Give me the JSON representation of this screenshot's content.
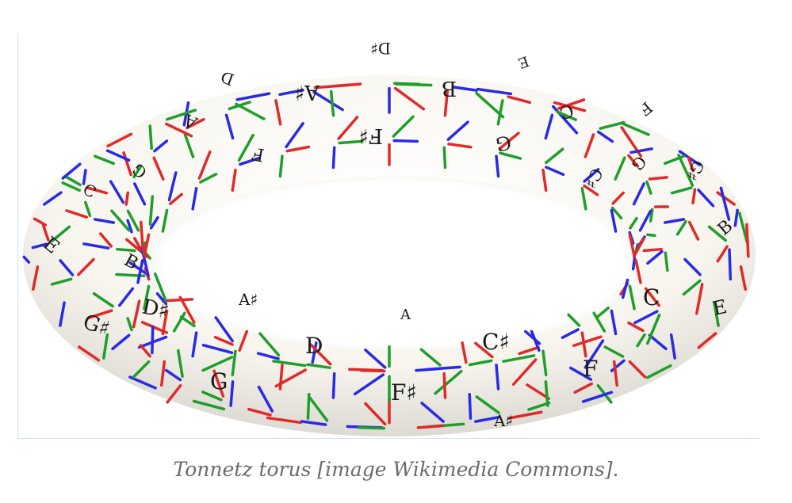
{
  "caption": "Tonnetz torus [image Wikimedia Commons].",
  "colors": {
    "fifth": "#1f9e2c",
    "major_third": "#2a2ae6",
    "minor_third": "#e02a2a",
    "frame": "#cfe3f2",
    "caption": "#6b6b6b"
  },
  "notes": {
    "front": [
      "G♯",
      "D♯",
      "A♯",
      "G",
      "D",
      "A",
      "F♯",
      "C♯",
      "F",
      "A♯",
      "C",
      "E",
      "B",
      "E",
      "B"
    ],
    "back": [
      "D♯",
      "A♯",
      "B",
      "F♯",
      "G",
      "D",
      "A",
      "F",
      "C",
      "E",
      "G",
      "C♯",
      "G♯",
      "F",
      "C",
      "G"
    ]
  }
}
